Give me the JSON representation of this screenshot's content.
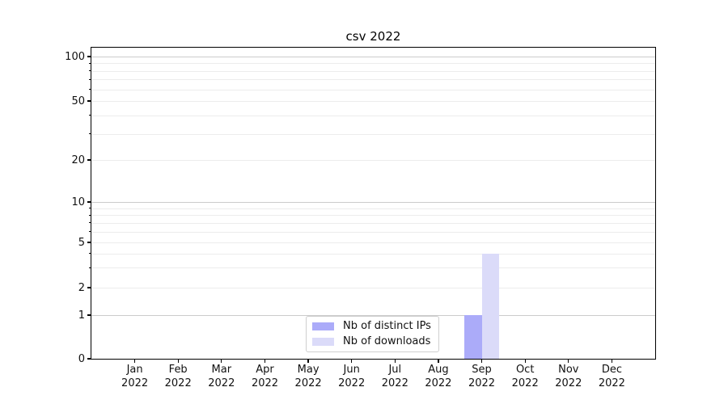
{
  "chart_data": {
    "type": "bar",
    "title": "csv 2022",
    "yscale": "symlog",
    "ylim": [
      0,
      115
    ],
    "grid": "horizontal",
    "legend_position": "lower center",
    "y_ticks": [
      0,
      1,
      2,
      5,
      10,
      20,
      50,
      100
    ],
    "categories": [
      {
        "month": "Jan",
        "year": "2022"
      },
      {
        "month": "Feb",
        "year": "2022"
      },
      {
        "month": "Mar",
        "year": "2022"
      },
      {
        "month": "Apr",
        "year": "2022"
      },
      {
        "month": "May",
        "year": "2022"
      },
      {
        "month": "Jun",
        "year": "2022"
      },
      {
        "month": "Jul",
        "year": "2022"
      },
      {
        "month": "Aug",
        "year": "2022"
      },
      {
        "month": "Sep",
        "year": "2022"
      },
      {
        "month": "Oct",
        "year": "2022"
      },
      {
        "month": "Nov",
        "year": "2022"
      },
      {
        "month": "Dec",
        "year": "2022"
      }
    ],
    "series": [
      {
        "name": "Nb of distinct IPs",
        "color": "#ababf9",
        "values": [
          0,
          0,
          0,
          0,
          0,
          0,
          0,
          0,
          1,
          0,
          0,
          0
        ]
      },
      {
        "name": "Nb of downloads",
        "color": "#dbdbf9",
        "values": [
          0,
          0,
          0,
          0,
          0,
          0,
          0,
          0,
          4,
          0,
          0,
          0
        ]
      }
    ]
  }
}
